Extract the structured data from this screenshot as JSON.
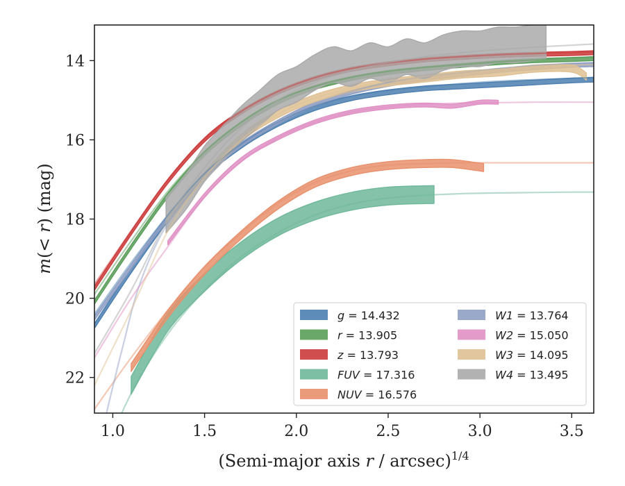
{
  "chart_data": {
    "type": "line",
    "title": "",
    "xlabel": "(Semi-major axis r / arcsec)",
    "xlabel_exponent": "1/4",
    "xlabel_italic_part": "r",
    "ylabel": "m(< r) (mag)",
    "xlim": [
      0.9,
      3.62
    ],
    "ylim": [
      22.9,
      13.1
    ],
    "y_inverted": true,
    "xticks": [
      1.0,
      1.5,
      2.0,
      2.5,
      3.0,
      3.5
    ],
    "xtick_labels": [
      "1.0",
      "1.5",
      "2.0",
      "2.5",
      "3.0",
      "3.5"
    ],
    "yticks": [
      14,
      16,
      18,
      20,
      22
    ],
    "ytick_labels": [
      "14",
      "16",
      "18",
      "20",
      "22"
    ],
    "grid": false,
    "legend_position": "lower-right",
    "series": [
      {
        "name": "g = 14.432",
        "band": "g",
        "value": "14.432",
        "color": "#4c7fb0",
        "band_x": [
          0.9,
          1.1,
          1.3,
          1.5,
          1.7,
          1.9,
          2.1,
          2.3,
          2.5,
          2.7,
          2.9,
          3.1,
          3.3,
          3.5,
          3.62
        ],
        "band_y": [
          20.7,
          19.3,
          18.0,
          16.9,
          16.15,
          15.6,
          15.2,
          14.95,
          14.8,
          14.7,
          14.65,
          14.6,
          14.55,
          14.5,
          14.48
        ],
        "band_width": 0.12,
        "model_x": [
          0.9,
          1.1,
          1.3,
          1.5,
          1.7,
          1.9,
          2.1,
          2.3,
          2.5,
          2.7,
          2.9,
          3.1,
          3.3,
          3.5,
          3.62
        ],
        "model_y": [
          20.4,
          19.1,
          17.9,
          16.85,
          16.1,
          15.55,
          15.15,
          14.9,
          14.75,
          14.66,
          14.58,
          14.52,
          14.48,
          14.45,
          14.43
        ]
      },
      {
        "name": "r = 13.905",
        "band": "r",
        "value": "13.905",
        "color": "#5a9e5a",
        "band_x": [
          0.9,
          1.1,
          1.3,
          1.5,
          1.7,
          1.9,
          2.1,
          2.3,
          2.5,
          2.7,
          2.9,
          3.1,
          3.3,
          3.5,
          3.62
        ],
        "band_y": [
          20.1,
          18.7,
          17.4,
          16.35,
          15.6,
          15.05,
          14.68,
          14.45,
          14.3,
          14.2,
          14.12,
          14.05,
          14.0,
          13.97,
          13.95
        ],
        "band_width": 0.1,
        "model_x": [
          0.9,
          1.1,
          1.3,
          1.5,
          1.7,
          1.9,
          2.1,
          2.3,
          2.5,
          2.7,
          2.9,
          3.1,
          3.3,
          3.5,
          3.62
        ],
        "model_y": [
          19.9,
          18.55,
          17.3,
          16.3,
          15.55,
          15.0,
          14.65,
          14.42,
          14.27,
          14.17,
          14.1,
          14.03,
          13.98,
          13.93,
          13.91
        ]
      },
      {
        "name": "z = 13.793",
        "band": "z",
        "value": "13.793",
        "color": "#cc3b3b",
        "band_x": [
          0.9,
          1.1,
          1.3,
          1.5,
          1.7,
          1.9,
          2.1,
          2.3,
          2.5,
          2.7,
          2.9,
          3.1,
          3.3,
          3.5,
          3.62
        ],
        "band_y": [
          19.75,
          18.35,
          17.05,
          16.0,
          15.3,
          14.8,
          14.45,
          14.22,
          14.08,
          13.98,
          13.92,
          13.87,
          13.84,
          13.82,
          13.8
        ],
        "band_width": 0.1,
        "model_x": [
          0.9,
          1.1,
          1.3,
          1.5,
          1.7,
          1.9,
          2.1,
          2.3,
          2.5,
          2.7,
          2.9,
          3.1,
          3.3,
          3.5,
          3.62
        ],
        "model_y": [
          19.65,
          18.3,
          17.0,
          15.98,
          15.28,
          14.78,
          14.43,
          14.2,
          14.06,
          13.96,
          13.9,
          13.85,
          13.82,
          13.8,
          13.79
        ]
      },
      {
        "name": "FUV = 17.316",
        "band": "FUV",
        "value": "17.316",
        "color": "#6fb89a",
        "band_x": [
          1.1,
          1.3,
          1.5,
          1.7,
          1.9,
          2.1,
          2.3,
          2.5,
          2.75
        ],
        "band_y": [
          22.2,
          20.6,
          19.6,
          18.8,
          18.2,
          17.8,
          17.55,
          17.42,
          17.38
        ],
        "band_width": 0.45,
        "model_x": [
          0.9,
          1.1,
          1.3,
          1.5,
          1.7,
          1.9,
          2.1,
          2.3,
          2.5,
          2.7,
          2.9,
          3.1,
          3.3,
          3.5,
          3.62
        ],
        "model_y": [
          24.5,
          22.4,
          20.9,
          19.8,
          18.95,
          18.35,
          17.9,
          17.62,
          17.47,
          17.4,
          17.36,
          17.34,
          17.33,
          17.32,
          17.32
        ]
      },
      {
        "name": "NUV = 16.576",
        "band": "NUV",
        "value": "16.576",
        "color": "#e8916c",
        "band_x": [
          1.1,
          1.3,
          1.5,
          1.7,
          1.9,
          2.1,
          2.3,
          2.5,
          2.7,
          2.85,
          3.02
        ],
        "band_y": [
          21.75,
          20.4,
          19.3,
          18.4,
          17.65,
          17.1,
          16.8,
          16.65,
          16.6,
          16.6,
          16.7
        ],
        "band_width": 0.2,
        "model_x": [
          0.9,
          1.1,
          1.3,
          1.5,
          1.7,
          1.9,
          2.1,
          2.3,
          2.5,
          2.7,
          2.9,
          3.1,
          3.3,
          3.5,
          3.62
        ],
        "model_y": [
          22.8,
          21.5,
          20.3,
          19.2,
          18.35,
          17.6,
          17.08,
          16.78,
          16.64,
          16.6,
          16.58,
          16.58,
          16.58,
          16.58,
          16.58
        ]
      },
      {
        "name": "W1 = 13.764",
        "band": "W1",
        "value": "13.764",
        "color": "#8f9fc4",
        "band_x": [
          0.9,
          1.1,
          1.3,
          1.5,
          1.7,
          1.9,
          2.1,
          2.3,
          2.5,
          2.7,
          2.9,
          3.1,
          3.3,
          3.5,
          3.62
        ],
        "band_y": [
          20.5,
          19.2,
          17.95,
          16.9,
          16.12,
          15.55,
          15.1,
          14.8,
          14.6,
          14.45,
          14.35,
          14.25,
          14.18,
          14.12,
          14.1
        ],
        "band_width": 0.1,
        "model_x": [
          0.95,
          1.05,
          1.15,
          1.3,
          1.5,
          1.7,
          1.9,
          2.1,
          2.3,
          2.5,
          2.7,
          2.9,
          3.1,
          3.3,
          3.5,
          3.62
        ],
        "model_y": [
          23.2,
          21.3,
          19.6,
          18.1,
          16.95,
          16.15,
          15.55,
          15.1,
          14.78,
          14.55,
          14.4,
          14.3,
          14.2,
          14.12,
          14.07,
          14.05
        ]
      },
      {
        "name": "W2 = 15.050",
        "band": "W2",
        "value": "15.050",
        "color": "#e090c4",
        "band_x": [
          1.3,
          1.5,
          1.7,
          1.9,
          2.1,
          2.3,
          2.5,
          2.7,
          2.85,
          3.0,
          3.1
        ],
        "band_y": [
          18.6,
          17.4,
          16.5,
          15.95,
          15.55,
          15.3,
          15.17,
          15.12,
          15.15,
          15.05,
          15.05
        ],
        "band_width": 0.1,
        "model_x": [
          0.9,
          1.1,
          1.3,
          1.5,
          1.7,
          1.9,
          2.1,
          2.3,
          2.5,
          2.7,
          2.9,
          3.1,
          3.3,
          3.5,
          3.62
        ],
        "model_y": [
          21.5,
          20.0,
          18.7,
          17.45,
          16.55,
          15.95,
          15.55,
          15.3,
          15.17,
          15.1,
          15.07,
          15.06,
          15.05,
          15.05,
          15.05
        ]
      },
      {
        "name": "W3 = 14.095",
        "band": "W3",
        "value": "14.095",
        "color": "#dfc193",
        "band_x": [
          1.3,
          1.5,
          1.7,
          1.9,
          2.1,
          2.3,
          2.5,
          2.7,
          2.9,
          3.1,
          3.3,
          3.5,
          3.58
        ],
        "band_y": [
          18.0,
          16.9,
          15.95,
          15.35,
          14.95,
          14.7,
          14.55,
          14.45,
          14.35,
          14.3,
          14.2,
          14.2,
          14.4
        ],
        "band_width": 0.18,
        "model_x": [
          0.9,
          1.1,
          1.3,
          1.5,
          1.7,
          1.9,
          2.1,
          2.3,
          2.5,
          2.7,
          2.9,
          3.1,
          3.3,
          3.5,
          3.62
        ],
        "model_y": [
          22.2,
          20.3,
          18.3,
          16.95,
          16.0,
          15.35,
          14.95,
          14.7,
          14.52,
          14.4,
          14.3,
          14.22,
          14.15,
          14.11,
          14.1
        ]
      },
      {
        "name": "W4 = 13.495",
        "band": "W4",
        "value": "13.495",
        "color": "#aaaaaa",
        "band_x": [
          1.29,
          1.4,
          1.5,
          1.6,
          1.7,
          1.8,
          1.9,
          2.0,
          2.1,
          2.2,
          2.3,
          2.4,
          2.5,
          2.6,
          2.7,
          2.8,
          2.9,
          3.0,
          3.1,
          3.2,
          3.36
        ],
        "band_y": [
          17.9,
          17.3,
          16.6,
          16.1,
          15.6,
          15.2,
          14.8,
          14.6,
          14.3,
          14.1,
          14.2,
          14.0,
          14.1,
          13.9,
          14.0,
          13.8,
          13.7,
          13.7,
          13.6,
          13.6,
          13.5
        ],
        "band_width": 0.9,
        "model_x": [
          0.9,
          1.1,
          1.3,
          1.5,
          1.7,
          1.9,
          2.1,
          2.3,
          2.5,
          2.7,
          2.9,
          3.1,
          3.3,
          3.5,
          3.62
        ],
        "model_y": [
          21.4,
          19.8,
          18.0,
          16.7,
          15.7,
          15.0,
          14.55,
          14.25,
          14.05,
          13.9,
          13.8,
          13.72,
          13.66,
          13.61,
          13.58
        ]
      }
    ]
  }
}
